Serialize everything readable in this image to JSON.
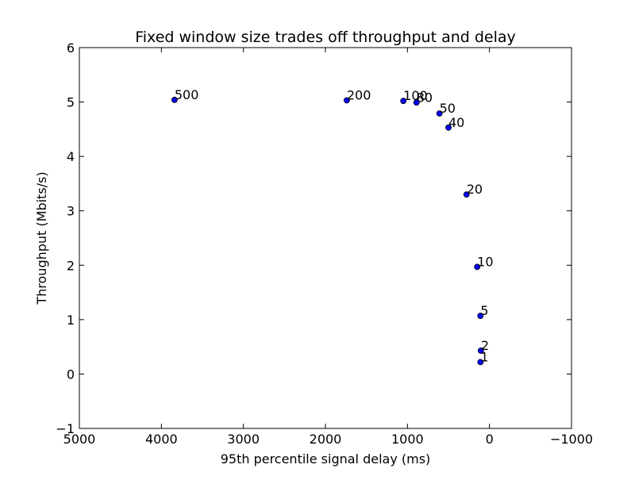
{
  "chart_data": {
    "type": "scatter",
    "title": "Fixed window size trades off throughput and delay",
    "xlabel": "95th percentile signal delay (ms)",
    "ylabel": "Throughput (Mbits/s)",
    "xlim": [
      5000,
      -1000
    ],
    "ylim": [
      -1,
      6
    ],
    "x_inverted": true,
    "xticks": [
      5000,
      4000,
      3000,
      2000,
      1000,
      0,
      -1000
    ],
    "xtick_labels": [
      "5000",
      "4000",
      "3000",
      "2000",
      "1000",
      "0",
      "−1000"
    ],
    "yticks": [
      -1,
      0,
      1,
      2,
      3,
      4,
      5,
      6
    ],
    "ytick_labels": [
      "−1",
      "0",
      "1",
      "2",
      "3",
      "4",
      "5",
      "6"
    ],
    "grid": false,
    "legend": "none",
    "marker_color": "#0000ff",
    "points": [
      {
        "label": "1",
        "x": 110,
        "y": 0.22
      },
      {
        "label": "2",
        "x": 105,
        "y": 0.43
      },
      {
        "label": "5",
        "x": 110,
        "y": 1.07
      },
      {
        "label": "10",
        "x": 150,
        "y": 1.97
      },
      {
        "label": "20",
        "x": 280,
        "y": 3.3
      },
      {
        "label": "40",
        "x": 500,
        "y": 4.53
      },
      {
        "label": "50",
        "x": 610,
        "y": 4.79
      },
      {
        "label": "80",
        "x": 890,
        "y": 4.99
      },
      {
        "label": "100",
        "x": 1050,
        "y": 5.02
      },
      {
        "label": "200",
        "x": 1740,
        "y": 5.03
      },
      {
        "label": "500",
        "x": 3840,
        "y": 5.04
      }
    ]
  }
}
